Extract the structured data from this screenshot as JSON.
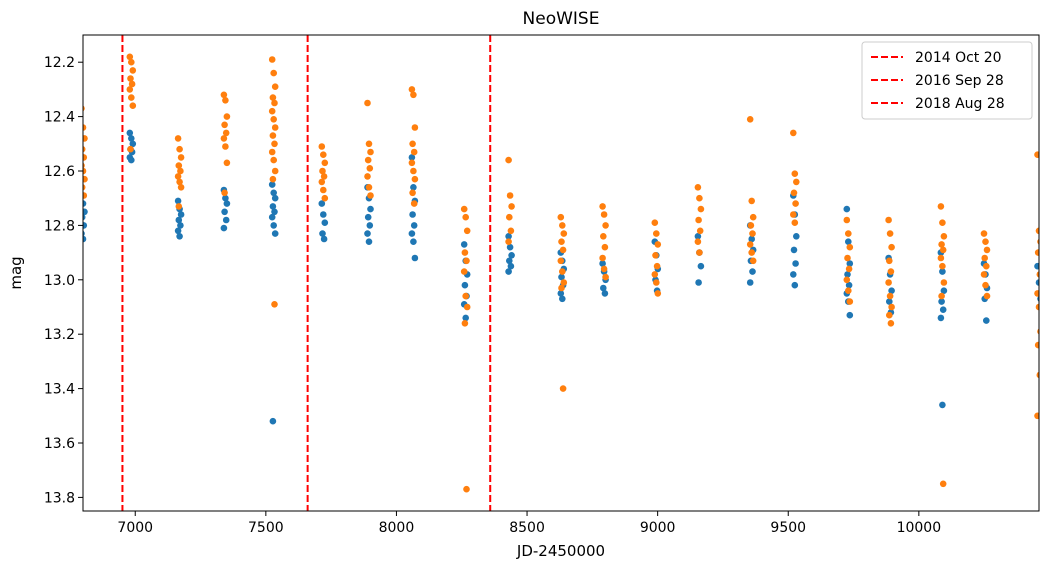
{
  "chart_data": {
    "type": "scatter",
    "title": "NeoWISE",
    "xlabel": "JD-2450000",
    "ylabel": "mag",
    "xlim": [
      6800,
      10460
    ],
    "ylim": [
      13.85,
      12.1
    ],
    "y_inverted": true,
    "xticks": [
      7000,
      7500,
      8000,
      8500,
      9000,
      9500,
      10000
    ],
    "yticks": [
      12.2,
      12.4,
      12.6,
      12.8,
      13.0,
      13.2,
      13.4,
      13.6,
      13.8
    ],
    "ytick_labels": [
      "12.2",
      "12.4",
      "12.6",
      "12.8",
      "13.0",
      "13.2",
      "13.4",
      "13.6",
      "13.8"
    ],
    "grid": false,
    "legend_position": "top-right",
    "vlines": [
      {
        "x": 6951,
        "label": "2014 Oct 20",
        "color": "#ff0000",
        "style": "dashed"
      },
      {
        "x": 7660,
        "label": "2016 Sep 28",
        "color": "#ff0000",
        "style": "dashed"
      },
      {
        "x": 8359,
        "label": "2018 Aug 28",
        "color": "#ff0000",
        "style": "dashed"
      }
    ],
    "series": [
      {
        "color": "#1f77b4",
        "epochs": [
          {
            "x": 6800,
            "mags": [
              12.69,
              12.72,
              12.75,
              12.77,
              12.8,
              12.83,
              12.85
            ]
          },
          {
            "x": 6985,
            "mags": [
              12.46,
              12.48,
              12.5,
              12.52,
              12.53,
              12.55,
              12.56
            ]
          },
          {
            "x": 7170,
            "mags": [
              12.71,
              12.74,
              12.76,
              12.78,
              12.8,
              12.82,
              12.84
            ]
          },
          {
            "x": 7345,
            "mags": [
              12.67,
              12.7,
              12.72,
              12.75,
              12.78,
              12.81
            ]
          },
          {
            "x": 7530,
            "mags": [
              12.65,
              12.68,
              12.7,
              12.73,
              12.75,
              12.77,
              12.8,
              12.83,
              13.52
            ]
          },
          {
            "x": 7720,
            "mags": [
              12.72,
              12.76,
              12.79,
              12.83,
              12.85
            ]
          },
          {
            "x": 7895,
            "mags": [
              12.66,
              12.7,
              12.74,
              12.77,
              12.8,
              12.83,
              12.86
            ]
          },
          {
            "x": 8065,
            "mags": [
              12.55,
              12.66,
              12.71,
              12.76,
              12.8,
              12.83,
              12.86,
              12.92
            ]
          },
          {
            "x": 8265,
            "mags": [
              12.87,
              12.93,
              12.98,
              13.02,
              13.06,
              13.09,
              13.14
            ]
          },
          {
            "x": 8435,
            "mags": [
              12.84,
              12.88,
              12.91,
              12.93,
              12.95,
              12.97
            ]
          },
          {
            "x": 8635,
            "mags": [
              12.9,
              12.93,
              12.96,
              12.99,
              13.02,
              13.05,
              13.07
            ]
          },
          {
            "x": 8795,
            "mags": [
              12.94,
              12.97,
              13.0,
              13.03,
              13.05
            ]
          },
          {
            "x": 8995,
            "mags": [
              12.86,
              12.91,
              12.96,
              13.0,
              13.04
            ]
          },
          {
            "x": 9160,
            "mags": [
              12.84,
              12.9,
              12.95,
              13.01
            ]
          },
          {
            "x": 9360,
            "mags": [
              12.8,
              12.85,
              12.89,
              12.93,
              12.97,
              13.01
            ]
          },
          {
            "x": 9525,
            "mags": [
              12.69,
              12.76,
              12.84,
              12.89,
              12.94,
              12.98,
              13.02
            ]
          },
          {
            "x": 9730,
            "mags": [
              12.74,
              12.86,
              12.94,
              12.98,
              13.02,
              13.05,
              13.08,
              13.13
            ]
          },
          {
            "x": 9890,
            "mags": [
              12.92,
              12.98,
              13.04,
              13.08,
              13.12
            ]
          },
          {
            "x": 10090,
            "mags": [
              12.9,
              12.97,
              13.04,
              13.08,
              13.11,
              13.14,
              13.46
            ]
          },
          {
            "x": 10255,
            "mags": [
              12.94,
              12.98,
              13.03,
              13.07,
              13.15
            ]
          },
          {
            "x": 10460,
            "mags": [
              12.95,
              13.01,
              13.07
            ]
          }
        ]
      },
      {
        "color": "#ff7f0e",
        "epochs": [
          {
            "x": 6800,
            "mags": [
              12.37,
              12.44,
              12.48,
              12.52,
              12.55,
              12.58,
              12.6,
              12.63,
              12.66,
              12.69
            ]
          },
          {
            "x": 6985,
            "mags": [
              12.18,
              12.2,
              12.23,
              12.26,
              12.28,
              12.3,
              12.33,
              12.36,
              12.52
            ]
          },
          {
            "x": 7170,
            "mags": [
              12.48,
              12.52,
              12.55,
              12.58,
              12.6,
              12.62,
              12.64,
              12.66,
              12.73
            ]
          },
          {
            "x": 7345,
            "mags": [
              12.32,
              12.34,
              12.4,
              12.43,
              12.46,
              12.48,
              12.51,
              12.57,
              12.68
            ]
          },
          {
            "x": 7530,
            "mags": [
              12.19,
              12.24,
              12.29,
              12.33,
              12.35,
              12.38,
              12.41,
              12.44,
              12.47,
              12.5,
              12.53,
              12.56,
              12.6,
              12.63,
              13.09
            ]
          },
          {
            "x": 7720,
            "mags": [
              12.51,
              12.54,
              12.57,
              12.6,
              12.62,
              12.64,
              12.67,
              12.7
            ]
          },
          {
            "x": 7895,
            "mags": [
              12.35,
              12.5,
              12.53,
              12.56,
              12.59,
              12.62,
              12.66,
              12.69
            ]
          },
          {
            "x": 8065,
            "mags": [
              12.3,
              12.32,
              12.44,
              12.5,
              12.53,
              12.57,
              12.6,
              12.63,
              12.68,
              12.72
            ]
          },
          {
            "x": 8265,
            "mags": [
              12.74,
              12.77,
              12.82,
              12.9,
              12.93,
              12.97,
              13.06,
              13.1,
              13.16,
              13.77
            ]
          },
          {
            "x": 8435,
            "mags": [
              12.56,
              12.69,
              12.73,
              12.77,
              12.82,
              12.86
            ]
          },
          {
            "x": 8635,
            "mags": [
              12.77,
              12.8,
              12.83,
              12.86,
              12.89,
              12.93,
              12.97,
              13.01,
              13.03,
              13.4
            ]
          },
          {
            "x": 8795,
            "mags": [
              12.73,
              12.76,
              12.8,
              12.84,
              12.88,
              12.92,
              12.96,
              12.99
            ]
          },
          {
            "x": 8995,
            "mags": [
              12.79,
              12.83,
              12.87,
              12.91,
              12.95,
              12.98,
              13.01,
              13.05
            ]
          },
          {
            "x": 9160,
            "mags": [
              12.66,
              12.7,
              12.74,
              12.78,
              12.82,
              12.86,
              12.9
            ]
          },
          {
            "x": 9360,
            "mags": [
              12.41,
              12.71,
              12.77,
              12.8,
              12.83,
              12.87,
              12.9,
              12.93
            ]
          },
          {
            "x": 9525,
            "mags": [
              12.46,
              12.61,
              12.64,
              12.68,
              12.72,
              12.76,
              12.79
            ]
          },
          {
            "x": 9730,
            "mags": [
              12.78,
              12.83,
              12.88,
              12.92,
              12.96,
              13.0,
              13.04,
              13.08
            ]
          },
          {
            "x": 9890,
            "mags": [
              12.78,
              12.83,
              12.88,
              12.93,
              12.97,
              13.01,
              13.06,
              13.1,
              13.13,
              13.16
            ]
          },
          {
            "x": 10090,
            "mags": [
              12.73,
              12.79,
              12.84,
              12.87,
              12.89,
              12.92,
              12.95,
              13.01,
              13.06,
              13.75
            ]
          },
          {
            "x": 10255,
            "mags": [
              12.83,
              12.86,
              12.89,
              12.92,
              12.95,
              12.98,
              13.02,
              13.06
            ]
          },
          {
            "x": 10460,
            "mags": [
              12.54,
              12.82,
              12.86,
              12.9,
              12.98,
              13.05,
              13.1,
              13.19,
              13.24,
              13.35,
              13.5
            ]
          }
        ]
      }
    ]
  }
}
